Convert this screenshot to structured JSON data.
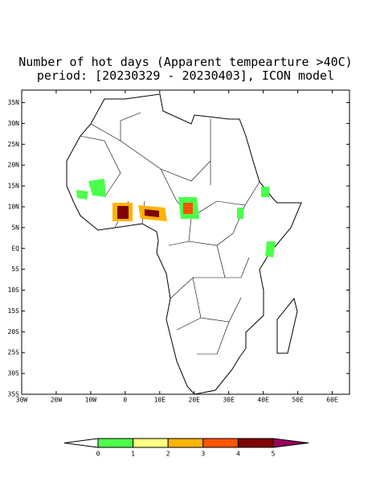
{
  "chart_data": {
    "type": "map",
    "title": "Number of hot days (Apparent tempearture >40C)",
    "subtitle": "period: [20230329 - 20230403], ICON model",
    "xlim": [
      -30,
      65
    ],
    "ylim": [
      -35,
      38
    ],
    "xticks": [
      {
        "value": -30,
        "label": "30W"
      },
      {
        "value": -20,
        "label": "20W"
      },
      {
        "value": -10,
        "label": "10W"
      },
      0,
      {
        "value": 10,
        "label": "10E"
      },
      {
        "value": 20,
        "label": "20E"
      },
      {
        "value": 30,
        "label": "30E"
      },
      {
        "value": 40,
        "label": "40E"
      },
      {
        "value": 50,
        "label": "50E"
      },
      {
        "value": 60,
        "label": "60E"
      }
    ],
    "yticks": [
      {
        "value": 35,
        "label": "35N"
      },
      {
        "value": 30,
        "label": "30N"
      },
      {
        "value": 25,
        "label": "25N"
      },
      {
        "value": 20,
        "label": "20N"
      },
      {
        "value": 15,
        "label": "15N"
      },
      {
        "value": 10,
        "label": "10N"
      },
      {
        "value": 5,
        "label": "5N"
      },
      {
        "value": 0,
        "label": "EQ"
      },
      {
        "value": -5,
        "label": "5S"
      },
      {
        "value": -10,
        "label": "10S"
      },
      {
        "value": -15,
        "label": "15S"
      },
      {
        "value": -20,
        "label": "20S"
      },
      {
        "value": -25,
        "label": "25S"
      },
      {
        "value": -30,
        "label": "30S"
      },
      {
        "value": -35,
        "label": "35S"
      }
    ],
    "levels": [
      0,
      1,
      2,
      3,
      4,
      5
    ],
    "colors": [
      "#ffffff",
      "#4cff4c",
      "#ffff80",
      "#ffb300",
      "#ff5500",
      "#800000",
      "#99005c"
    ]
  }
}
